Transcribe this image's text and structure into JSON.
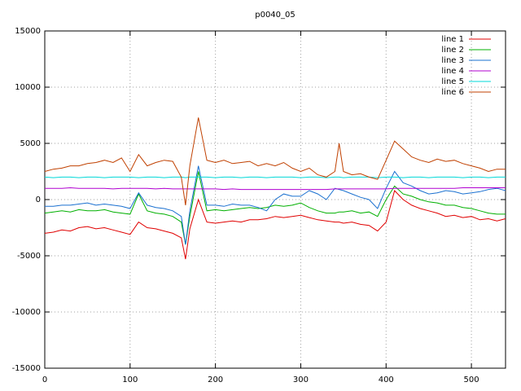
{
  "chart_data": {
    "type": "line",
    "title": "p0040_05",
    "x": [
      0,
      10,
      20,
      30,
      40,
      50,
      60,
      70,
      80,
      90,
      100,
      110,
      120,
      130,
      140,
      150,
      160,
      165,
      170,
      180,
      190,
      200,
      210,
      220,
      230,
      240,
      250,
      260,
      270,
      280,
      290,
      300,
      310,
      320,
      330,
      340,
      345,
      350,
      360,
      370,
      380,
      390,
      400,
      410,
      420,
      430,
      440,
      450,
      460,
      470,
      480,
      490,
      500,
      510,
      520,
      530,
      540
    ],
    "series": [
      {
        "name": "line 1",
        "color": "#e00000",
        "values": [
          -3000,
          -2900,
          -2700,
          -2800,
          -2500,
          -2400,
          -2600,
          -2500,
          -2700,
          -2900,
          -3100,
          -2000,
          -2500,
          -2600,
          -2800,
          -3000,
          -3400,
          -5300,
          -2600,
          0,
          -2000,
          -2100,
          -2000,
          -1900,
          -2000,
          -1800,
          -1800,
          -1700,
          -1500,
          -1600,
          -1500,
          -1400,
          -1600,
          -1800,
          -1900,
          -2000,
          -2000,
          -2100,
          -2000,
          -2200,
          -2300,
          -2800,
          -2000,
          800,
          0,
          -500,
          -800,
          -1000,
          -1200,
          -1500,
          -1400,
          -1600,
          -1500,
          -1800,
          -1700,
          -1900,
          -1700
        ]
      },
      {
        "name": "line 2",
        "color": "#00b000",
        "values": [
          -1200,
          -1100,
          -1000,
          -1100,
          -900,
          -1000,
          -1000,
          -900,
          -1100,
          -1200,
          -1300,
          500,
          -1000,
          -1200,
          -1300,
          -1500,
          -2000,
          -4000,
          -1500,
          2500,
          -1000,
          -900,
          -1000,
          -900,
          -800,
          -700,
          -800,
          -700,
          -500,
          -600,
          -500,
          -300,
          -700,
          -1000,
          -1200,
          -1200,
          -1100,
          -1100,
          -1000,
          -1200,
          -1100,
          -1500,
          0,
          1200,
          500,
          300,
          0,
          -200,
          -300,
          -500,
          -500,
          -700,
          -800,
          -1000,
          -1200,
          -1300,
          -1300
        ]
      },
      {
        "name": "line 3",
        "color": "#1a70d0",
        "values": [
          -600,
          -600,
          -500,
          -500,
          -400,
          -300,
          -500,
          -400,
          -500,
          -600,
          -800,
          600,
          -500,
          -700,
          -800,
          -1000,
          -1500,
          -4000,
          -1000,
          3000,
          -500,
          -500,
          -600,
          -400,
          -500,
          -500,
          -700,
          -1000,
          0,
          500,
          300,
          300,
          800,
          500,
          0,
          1000,
          900,
          800,
          500,
          200,
          0,
          -800,
          1000,
          2500,
          1500,
          1200,
          800,
          500,
          600,
          800,
          700,
          500,
          600,
          700,
          900,
          1000,
          800
        ]
      },
      {
        "name": "line 4",
        "color": "#b000d0",
        "values": [
          1000,
          1000,
          1000,
          1050,
          1000,
          1000,
          1000,
          1000,
          950,
          1000,
          1000,
          1000,
          1000,
          950,
          1000,
          950,
          950,
          950,
          950,
          950,
          950,
          950,
          900,
          950,
          900,
          900,
          900,
          900,
          900,
          900,
          900,
          900,
          900,
          900,
          900,
          950,
          950,
          950,
          950,
          950,
          950,
          950,
          950,
          1000,
          1000,
          1000,
          1000,
          1000,
          1000,
          1000,
          1000,
          1050,
          1050,
          1050,
          1050,
          1050,
          1050
        ]
      },
      {
        "name": "line 5",
        "color": "#00d8d8",
        "values": [
          2000,
          1950,
          2000,
          2000,
          1950,
          2000,
          2000,
          1950,
          2000,
          2000,
          2000,
          1950,
          2000,
          2000,
          1950,
          2000,
          2000,
          1950,
          2000,
          2000,
          2000,
          1950,
          2000,
          2000,
          1950,
          2000,
          2000,
          1950,
          2000,
          2000,
          2000,
          1950,
          2000,
          2000,
          1950,
          2000,
          2000,
          1950,
          2000,
          2000,
          2000,
          1950,
          2000,
          2000,
          1950,
          2000,
          2000,
          1950,
          2000,
          2000,
          2000,
          1950,
          2000,
          2000,
          1950,
          2000,
          2000
        ]
      },
      {
        "name": "line 6",
        "color": "#c04000",
        "values": [
          2500,
          2700,
          2800,
          3000,
          3000,
          3200,
          3300,
          3500,
          3300,
          3700,
          2500,
          4000,
          3000,
          3300,
          3500,
          3400,
          2000,
          -500,
          3000,
          7300,
          3500,
          3300,
          3500,
          3200,
          3300,
          3400,
          3000,
          3200,
          3000,
          3300,
          2800,
          2500,
          2800,
          2200,
          2000,
          2500,
          5000,
          2500,
          2200,
          2300,
          2000,
          1800,
          3500,
          5200,
          4500,
          3800,
          3500,
          3300,
          3600,
          3400,
          3500,
          3200,
          3000,
          2800,
          2500,
          2700,
          2700
        ]
      }
    ],
    "xlim": [
      0,
      540
    ],
    "xticks": [
      0,
      100,
      200,
      300,
      400,
      500
    ],
    "ylim": [
      -15000,
      15000
    ],
    "yticks": [
      -15000,
      -10000,
      -5000,
      0,
      5000,
      10000,
      15000
    ],
    "grid": true,
    "legend": "top-right"
  }
}
